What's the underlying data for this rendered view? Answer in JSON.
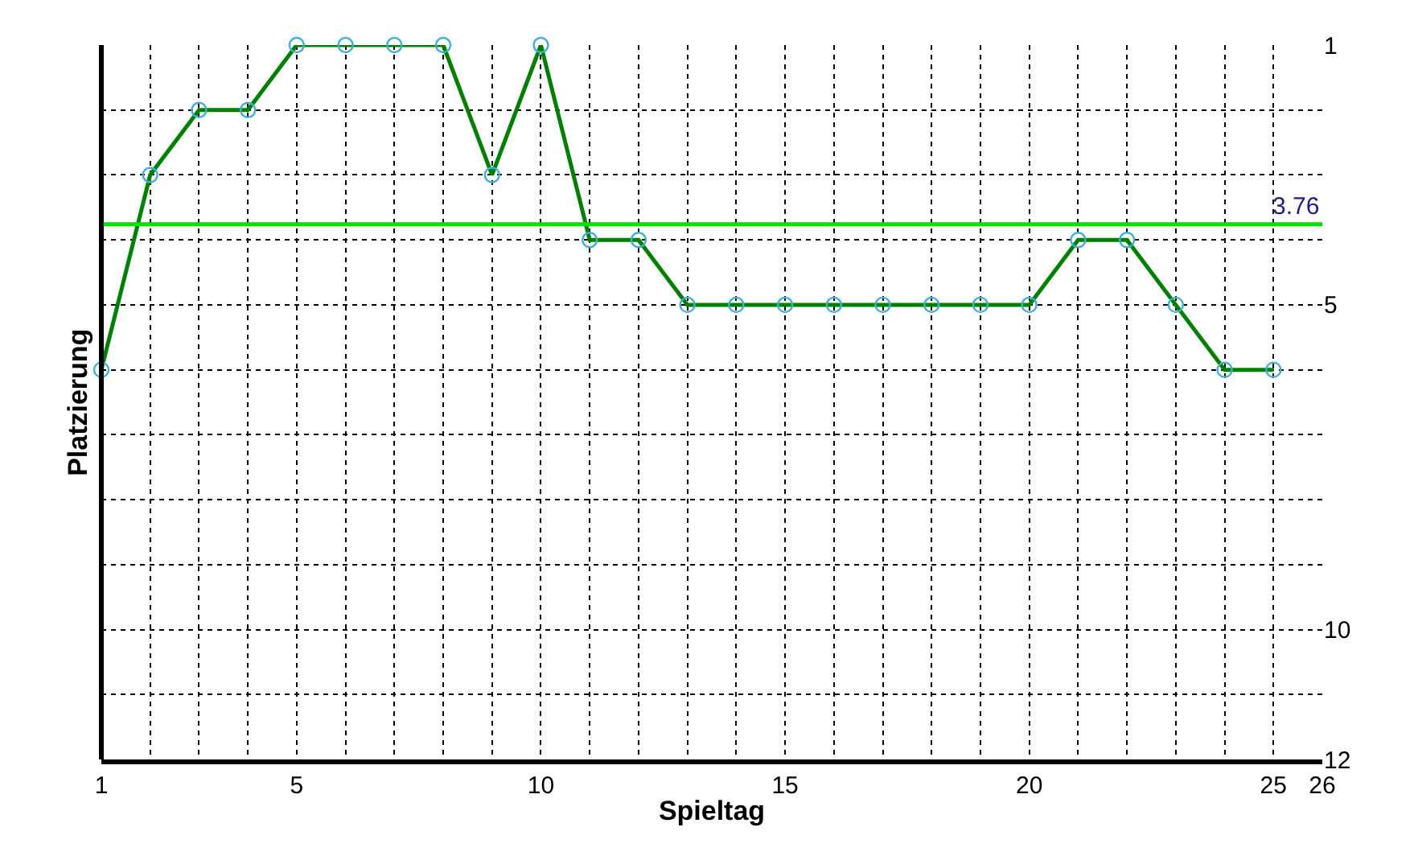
{
  "chart_data": {
    "type": "line",
    "xlabel": "Spieltag",
    "ylabel": "Platzierung",
    "x": [
      1,
      2,
      3,
      4,
      5,
      6,
      7,
      8,
      9,
      10,
      11,
      12,
      13,
      14,
      15,
      16,
      17,
      18,
      19,
      20,
      21,
      22,
      23,
      24,
      25
    ],
    "series": [
      {
        "color": "#008000",
        "values": [
          6,
          3,
          2,
          2,
          1,
          1,
          1,
          1,
          3,
          1,
          4,
          4,
          5,
          5,
          5,
          5,
          5,
          5,
          5,
          5,
          4,
          4,
          5,
          6,
          6
        ]
      }
    ],
    "xlim": [
      1,
      26
    ],
    "xticks": [
      1,
      5,
      10,
      15,
      20,
      25,
      26
    ],
    "ylim": [
      12,
      1
    ],
    "yticks": [
      1,
      5,
      10,
      12
    ],
    "ref_lines": [
      {
        "axis": "y",
        "value": 3.76,
        "label": "3.76",
        "color": "#00e000"
      }
    ],
    "grid": true,
    "marker": "circle",
    "line_style": "solid"
  }
}
